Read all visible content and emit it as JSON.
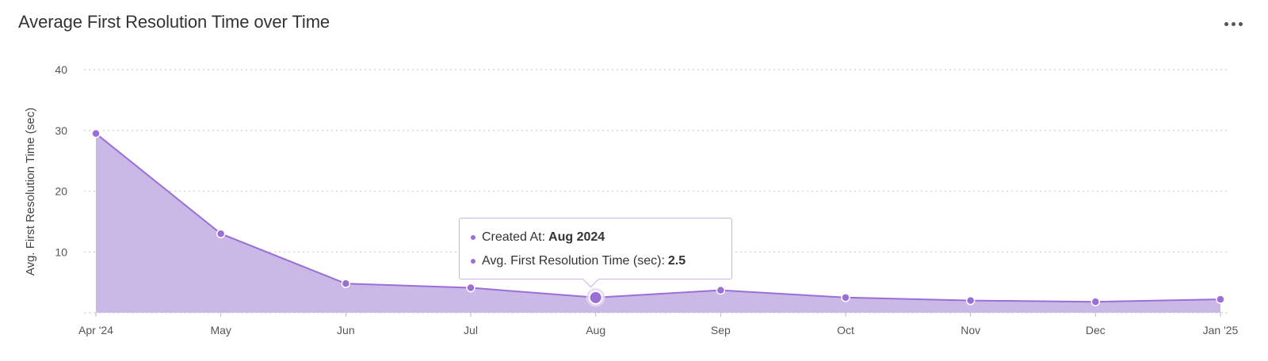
{
  "card": {
    "title": "Average First Resolution Time over Time",
    "menu_icon": "more-horizontal-icon"
  },
  "tooltip": {
    "row1_label": "Created At:",
    "row1_value": "Aug 2024",
    "row2_label": "Avg. First Resolution Time (sec):",
    "row2_value": "2.5"
  },
  "colors": {
    "line": "#9a6fd8",
    "area": "#c7b4e6",
    "grid": "#cfcfcf",
    "axis_text": "#555555"
  },
  "chart_data": {
    "type": "area",
    "title": "Average First Resolution Time over Time",
    "xlabel": "",
    "ylabel": "Avg. First Resolution Time (sec)",
    "categories": [
      "Apr '24",
      "May",
      "Jun",
      "Jul",
      "Aug",
      "Sep",
      "Oct",
      "Nov",
      "Dec",
      "Jan '25"
    ],
    "series": [
      {
        "name": "Avg. First Resolution Time (sec)",
        "values": [
          29.5,
          13,
          4.8,
          4.1,
          2.5,
          3.7,
          2.5,
          2.0,
          1.8,
          2.2
        ]
      }
    ],
    "ylim": [
      0,
      40
    ],
    "yticks": [
      10,
      20,
      30,
      40
    ],
    "grid": true,
    "highlighted_index": 4
  }
}
